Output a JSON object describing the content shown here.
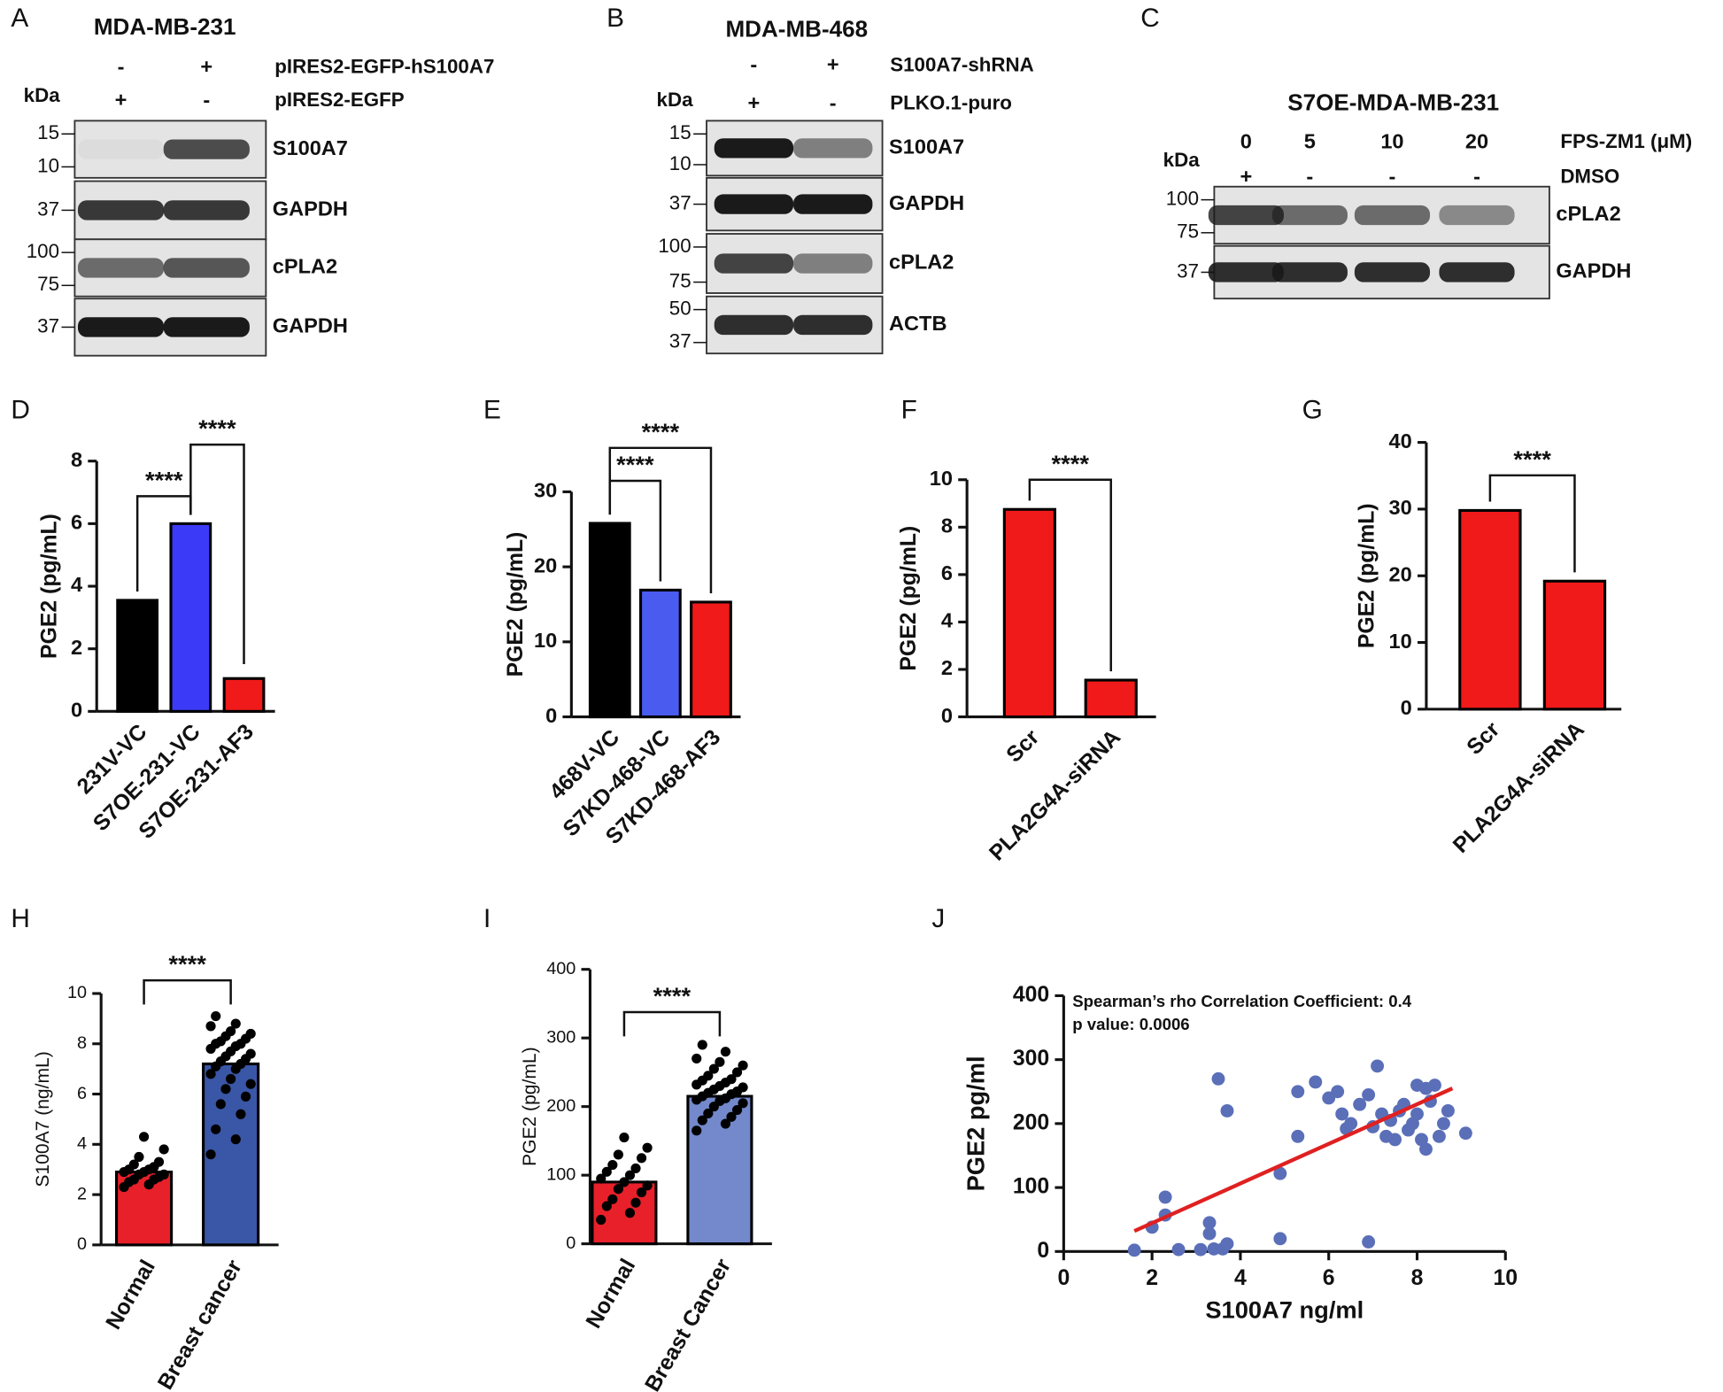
{
  "blots": [
    {
      "panel": "A",
      "title": "MDA-MB-231",
      "unit": "kDa",
      "conditions": [
        {
          "signs": [
            "-",
            "+"
          ],
          "label": "pIRES2-EGFP-hS100A7"
        },
        {
          "signs": [
            "+",
            "-"
          ],
          "label": "pIRES2-EGFP"
        }
      ],
      "strips": [
        {
          "markers": [
            15,
            10
          ],
          "label": "S100A7"
        },
        {
          "markers": [
            37
          ],
          "label": "GAPDH"
        },
        {
          "markers": [
            100,
            75
          ],
          "label": "cPLA2"
        },
        {
          "markers": [
            37
          ],
          "label": "GAPDH"
        }
      ]
    },
    {
      "panel": "B",
      "title": "MDA-MB-468",
      "unit": "kDa",
      "conditions": [
        {
          "signs": [
            "-",
            "+"
          ],
          "label": "S100A7-shRNA"
        },
        {
          "signs": [
            "+",
            "-"
          ],
          "label": "PLKO.1-puro"
        }
      ],
      "strips": [
        {
          "markers": [
            15,
            10
          ],
          "label": "S100A7"
        },
        {
          "markers": [
            37
          ],
          "label": "GAPDH"
        },
        {
          "markers": [
            100,
            75
          ],
          "label": "cPLA2"
        },
        {
          "markers": [
            50,
            37
          ],
          "label": "ACTB"
        }
      ]
    },
    {
      "panel": "C",
      "title": "S7OE-MDA-MB-231",
      "unit": "kDa",
      "conditions": [
        {
          "signs": [
            "0",
            "5",
            "10",
            "20"
          ],
          "label": "FPS-ZM1 (μM)"
        },
        {
          "signs": [
            "+",
            "-",
            "-",
            "-"
          ],
          "label": "DMSO"
        }
      ],
      "strips": [
        {
          "markers": [
            100,
            75
          ],
          "label": "cPLA2"
        },
        {
          "markers": [
            37
          ],
          "label": "GAPDH"
        }
      ]
    }
  ],
  "chart_data": [
    {
      "panel": "D",
      "type": "bar",
      "ylabel": "PGE2 (pg/mL)",
      "categories": [
        "231V-VC",
        "S7OE-231-VC",
        "S7OE-231-AF3"
      ],
      "values": [
        3.55,
        6.0,
        1.05
      ],
      "colors": [
        "#000000",
        "#3b3bf7",
        "#f01a1a"
      ],
      "ylim": [
        0,
        8
      ],
      "yticks": [
        0,
        2,
        4,
        6,
        8
      ],
      "significance": [
        {
          "between": [
            0,
            1
          ],
          "label": "****"
        },
        {
          "between": [
            1,
            2
          ],
          "label": "****"
        }
      ]
    },
    {
      "panel": "E",
      "type": "bar",
      "ylabel": "PGE2 (pg/mL)",
      "categories": [
        "468V-VC",
        "S7KD-468-VC",
        "S7KD-468-AF3"
      ],
      "values": [
        25.8,
        16.9,
        15.3
      ],
      "colors": [
        "#000000",
        "#4a5cf0",
        "#f01a1a"
      ],
      "ylim": [
        0,
        30
      ],
      "yticks": [
        0,
        10,
        20,
        30
      ],
      "significance": [
        {
          "between": [
            0,
            1
          ],
          "label": "****"
        },
        {
          "between": [
            0,
            2
          ],
          "label": "****"
        }
      ]
    },
    {
      "panel": "F",
      "type": "bar",
      "ylabel": "PGE2 (pg/mL)",
      "categories": [
        "Scr",
        "PLA2G4A-siRNA"
      ],
      "values": [
        8.75,
        1.55
      ],
      "colors": [
        "#f01a1a",
        "#f01a1a"
      ],
      "ylim": [
        0,
        10
      ],
      "yticks": [
        0,
        2,
        4,
        6,
        8,
        10
      ],
      "significance": [
        {
          "between": [
            0,
            1
          ],
          "label": "****"
        }
      ]
    },
    {
      "panel": "G",
      "type": "bar",
      "ylabel": "PGE2 (pg/mL)",
      "categories": [
        "Scr",
        "PLA2G4A-siRNA"
      ],
      "values": [
        29.8,
        19.2
      ],
      "colors": [
        "#f01a1a",
        "#f01a1a"
      ],
      "ylim": [
        0,
        40
      ],
      "yticks": [
        0,
        10,
        20,
        30,
        40
      ],
      "significance": [
        {
          "between": [
            0,
            1
          ],
          "label": "****"
        }
      ]
    },
    {
      "panel": "H",
      "type": "bar",
      "ylabel": "S100A7 (ng/mL)",
      "categories": [
        "Normal",
        "Breast cancer"
      ],
      "values": [
        2.9,
        7.2
      ],
      "colors": [
        "#e8202a",
        "#3a56a6"
      ],
      "ylim": [
        0,
        10
      ],
      "yticks": [
        0,
        2,
        4,
        6,
        8,
        10
      ],
      "significance": [
        {
          "between": [
            0,
            1
          ],
          "label": "****"
        }
      ],
      "points": [
        [
          2.3,
          2.4,
          2.5,
          2.6,
          2.6,
          2.7,
          2.8,
          2.8,
          2.9,
          2.9,
          3.0,
          3.0,
          3.1,
          3.2,
          3.3,
          3.5,
          3.8,
          4.3
        ],
        [
          3.6,
          4.2,
          4.6,
          5.2,
          5.6,
          5.9,
          6.2,
          6.4,
          6.6,
          6.8,
          7.0,
          7.1,
          7.2,
          7.3,
          7.4,
          7.5,
          7.6,
          7.7,
          7.8,
          7.9,
          8.0,
          8.0,
          8.1,
          8.2,
          8.3,
          8.4,
          8.5,
          8.7,
          8.8,
          9.1
        ]
      ]
    },
    {
      "panel": "I",
      "type": "bar",
      "ylabel": "PGE2 (pg/mL)",
      "categories": [
        "Normal",
        "Breast Cancer"
      ],
      "values": [
        90,
        215
      ],
      "colors": [
        "#e8202a",
        "#7389cc"
      ],
      "ylim": [
        0,
        400
      ],
      "yticks": [
        0,
        100,
        200,
        300,
        400
      ],
      "significance": [
        {
          "between": [
            0,
            1
          ],
          "label": "****"
        }
      ],
      "points": [
        [
          35,
          45,
          55,
          60,
          65,
          75,
          80,
          85,
          90,
          95,
          100,
          105,
          110,
          115,
          125,
          130,
          140,
          155
        ],
        [
          165,
          175,
          180,
          185,
          190,
          195,
          200,
          205,
          208,
          210,
          212,
          215,
          218,
          220,
          222,
          225,
          228,
          230,
          232,
          235,
          238,
          240,
          245,
          250,
          255,
          260,
          265,
          270,
          280,
          290
        ]
      ]
    },
    {
      "panel": "J",
      "type": "scatter",
      "xlabel": "S100A7 ng/ml",
      "ylabel": "PGE2 pg/ml",
      "color": "#5a6fb8",
      "annotations": [
        "Spearman’s rho Correlation Coefficient: 0.4",
        "p value: 0.0006"
      ],
      "xlim": [
        0,
        10
      ],
      "xticks": [
        0,
        2,
        4,
        6,
        8,
        10
      ],
      "ylim": [
        0,
        400
      ],
      "yticks": [
        0,
        100,
        200,
        300,
        400
      ],
      "x": [
        1.6,
        2.0,
        2.3,
        2.3,
        2.6,
        3.1,
        3.3,
        3.3,
        3.4,
        3.5,
        3.6,
        3.7,
        3.7,
        4.9,
        4.9,
        5.3,
        5.3,
        5.7,
        6.0,
        6.2,
        6.3,
        6.4,
        6.5,
        6.7,
        6.9,
        6.9,
        7.1,
        7.0,
        7.2,
        7.3,
        7.4,
        7.5,
        7.6,
        7.7,
        7.8,
        7.9,
        8.0,
        8.0,
        8.1,
        8.2,
        8.2,
        8.3,
        8.4,
        8.5,
        8.6,
        8.7,
        9.1
      ],
      "y": [
        2,
        38,
        85,
        57,
        3,
        3,
        45,
        28,
        4,
        270,
        4,
        12,
        220,
        20,
        122,
        250,
        180,
        265,
        240,
        250,
        215,
        192,
        200,
        230,
        15,
        245,
        290,
        195,
        215,
        180,
        205,
        175,
        220,
        230,
        190,
        200,
        260,
        215,
        175,
        255,
        160,
        235,
        260,
        180,
        200,
        220,
        185
      ],
      "fit": {
        "x": [
          1.6,
          8.8
        ],
        "y": [
          32,
          255
        ],
        "color": "#e02020"
      }
    }
  ]
}
